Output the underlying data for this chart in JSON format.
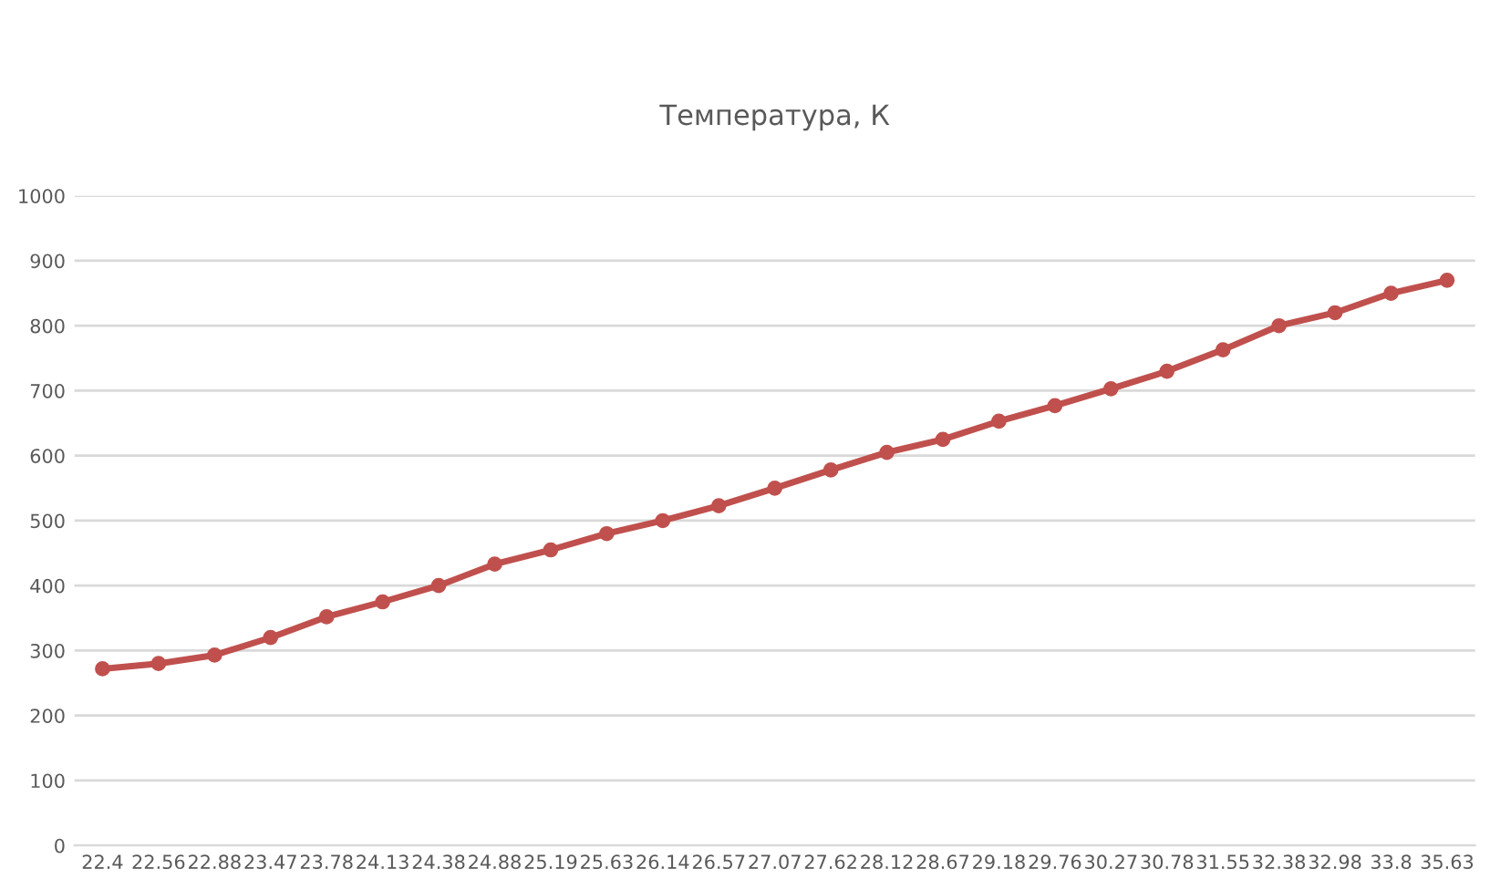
{
  "chart_data": {
    "type": "line",
    "title": "Температура, К",
    "categories": [
      "22.4",
      "22.56",
      "22.88",
      "23.47",
      "23.78",
      "24.13",
      "24.38",
      "24.88",
      "25.19",
      "25.63",
      "26.14",
      "26.57",
      "27.07",
      "27.62",
      "28.12",
      "28.67",
      "29.18",
      "29.76",
      "30.27",
      "30.78",
      "31.55",
      "32.38",
      "32.98",
      "33.8",
      "35.63"
    ],
    "series": [
      {
        "color": "#c0504d",
        "values": [
          272,
          280,
          293,
          320,
          352,
          375,
          400,
          433,
          455,
          480,
          500,
          523,
          550,
          578,
          605,
          625,
          653,
          677,
          703,
          730,
          763,
          800,
          820,
          850,
          870
        ]
      }
    ],
    "ylim": [
      0,
      1000
    ],
    "yticks": [
      0,
      100,
      200,
      300,
      400,
      500,
      600,
      700,
      800,
      900,
      1000
    ],
    "grid": "y",
    "legend": false,
    "marker": "circle",
    "line_style": "solid"
  }
}
